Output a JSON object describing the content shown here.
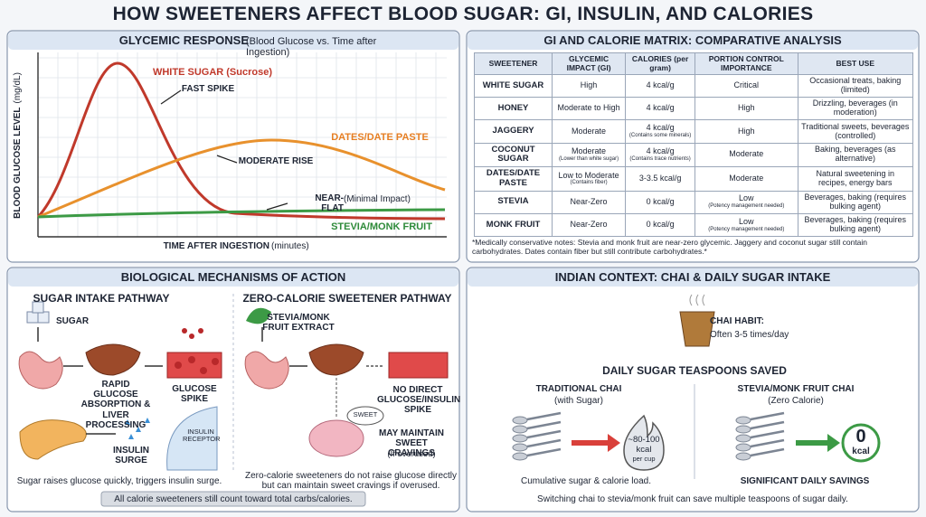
{
  "title": "HOW SWEETENERS AFFECT BLOOD SUGAR: GI, INSULIN, AND CALORIES",
  "chart": {
    "title": "GLYCEMIC RESPONSE",
    "title_suffix": "(Blood Glucose vs. Time after Ingestion)",
    "y_label": "BLOOD GLUCOSE LEVEL",
    "y_unit": "(mg/dL)",
    "x_label": "TIME AFTER INGESTION",
    "x_unit": "(minutes)",
    "annotations": [
      "WHITE SUGAR (Sucrose)",
      "FAST SPIKE",
      "DATES/DATE PASTE",
      "MODERATE RISE",
      "NEAR-FLAT",
      "(Minimal Impact)",
      "STEVIA/MONK FRUIT"
    ]
  },
  "table": {
    "title": "GI AND CALORIE MATRIX: COMPARATIVE ANALYSIS",
    "headers": [
      "SWEETENER",
      "GLYCEMIC IMPACT (GI)",
      "CALORIES (per gram)",
      "PORTION CONTROL IMPORTANCE",
      "BEST USE"
    ],
    "rows": [
      [
        "WHITE SUGAR",
        "High",
        "4 kcal/g",
        "Critical",
        "Occasional treats, baking (limited)"
      ],
      [
        "HONEY",
        "Moderate to High",
        "4 kcal/g",
        "High",
        "Drizzling, beverages (in moderation)"
      ],
      [
        "JAGGERY",
        "Moderate",
        {
          "main": "4 kcal/g",
          "sub": "(Contains some minerals)"
        },
        "High",
        "Traditional sweets, beverages (controlled)"
      ],
      [
        "COCONUT SUGAR",
        {
          "main": "Moderate",
          "sub": "(Lower than white sugar)"
        },
        {
          "main": "4 kcal/g",
          "sub": "(Contains trace nutrients)"
        },
        "Moderate",
        "Baking, beverages (as alternative)"
      ],
      [
        "DATES/DATE PASTE",
        {
          "main": "Low to Moderate",
          "sub": "(Contains fiber)"
        },
        "3-3.5 kcal/g",
        "Moderate",
        "Natural sweetening in recipes, energy bars"
      ],
      [
        "STEVIA",
        "Near-Zero",
        "0 kcal/g",
        {
          "main": "Low",
          "sub": "(Potency management needed)"
        },
        "Beverages, baking (requires bulking agent)"
      ],
      [
        "MONK FRUIT",
        "Near-Zero",
        "0 kcal/g",
        {
          "main": "Low",
          "sub": "(Potency management needed)"
        },
        "Beverages, baking (requires bulking agent)"
      ]
    ],
    "note": "*Medically conservative notes: Stevia and monk fruit are near-zero glycemic. Jaggery and coconut sugar still contain carbohydrates. Dates contain fiber but still contribute carbohydrates.*"
  },
  "mechanisms": {
    "title": "BIOLOGICAL MECHANISMS OF ACTION",
    "sugar": {
      "title": "SUGAR INTAKE PATHWAY",
      "input": "SUGAR",
      "absorption": "RAPID GLUCOSE ABSORPTION & LIVER PROCESSING",
      "spike": "GLUCOSE SPIKE",
      "receptor": "INSULIN RECEPTOR",
      "surge": "INSULIN SURGE",
      "caption": "Sugar raises glucose quickly, triggers insulin surge."
    },
    "zero": {
      "title": "ZERO-CALORIE SWEETENER PATHWAY",
      "input": "STEVIA/MONK FRUIT EXTRACT",
      "no_spike": "NO DIRECT GLUCOSE/INSULIN SPIKE",
      "bubble": "SWEET",
      "cravings": "MAY MAINTAIN SWEET CRAVINGS",
      "cravings_note": "(If overused)",
      "caption": "Zero-calorie sweeteners do not raise glucose directly but can maintain sweet cravings if overused."
    },
    "footer": "All calorie sweeteners still count toward total carbs/calories."
  },
  "india": {
    "title": "INDIAN CONTEXT: CHAI & DAILY SUGAR INTAKE",
    "habit": "CHAI HABIT:",
    "habit_freq": "Often 3-5 times/day",
    "subtitle": "DAILY SUGAR TEASPOONS SAVED",
    "traditional": {
      "title": "TRADITIONAL CHAI",
      "note": "(with Sugar)",
      "badge": "~80-100",
      "badge_unit": "kcal",
      "badge_note": "per cup",
      "caption": "Cumulative sugar & calorie load."
    },
    "stevia": {
      "title": "STEVIA/MONK FRUIT CHAI",
      "note": "(Zero Calorie)",
      "badge": "0",
      "badge_unit": "kcal",
      "caption": "SIGNIFICANT DAILY SAVINGS"
    },
    "footer": "Switching chai to stevia/monk fruit can save multiple teaspoons of sugar daily."
  }
}
